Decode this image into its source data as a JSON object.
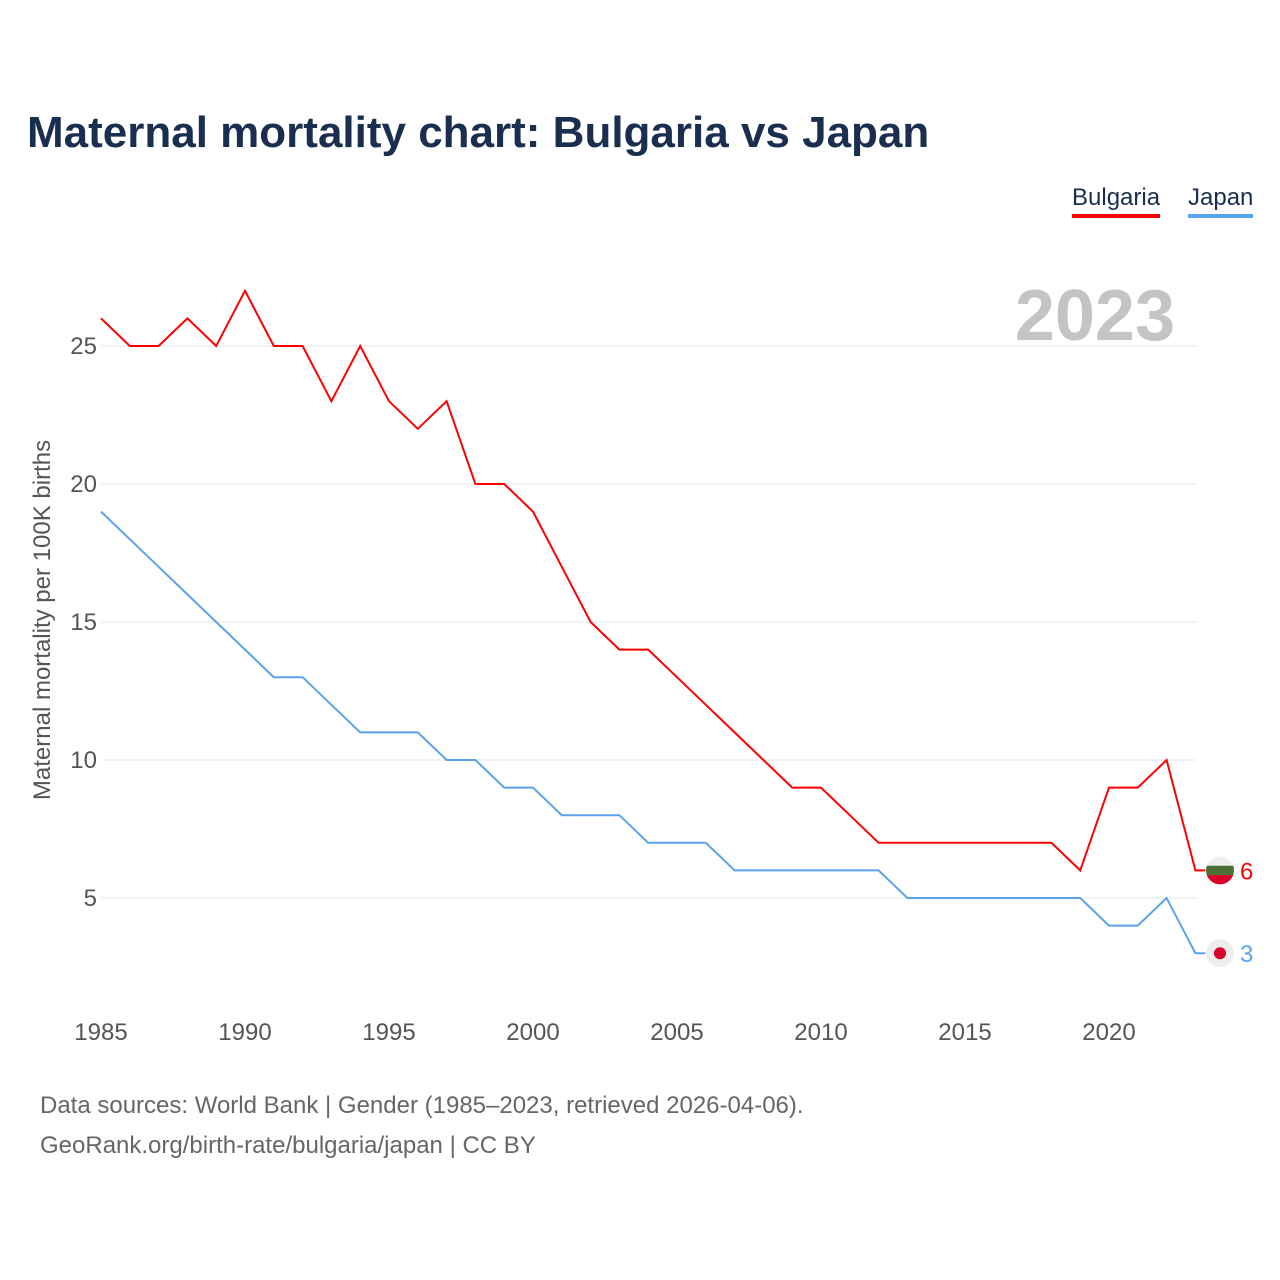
{
  "chart_data": {
    "type": "line",
    "title": "Maternal mortality chart: Bulgaria vs Japan",
    "ylabel": "Maternal mortality per 100K births",
    "xlabel": "",
    "year_label": "2023",
    "x": [
      1985,
      1986,
      1987,
      1988,
      1989,
      1990,
      1991,
      1992,
      1993,
      1994,
      1995,
      1996,
      1997,
      1998,
      1999,
      2000,
      2001,
      2002,
      2003,
      2004,
      2005,
      2006,
      2007,
      2008,
      2009,
      2010,
      2011,
      2012,
      2013,
      2014,
      2015,
      2016,
      2017,
      2018,
      2019,
      2020,
      2021,
      2022,
      2023
    ],
    "series": [
      {
        "name": "Bulgaria",
        "color": "#ff0000",
        "end_label": "6",
        "values": [
          26,
          25,
          25,
          26,
          25,
          27,
          25,
          25,
          23,
          25,
          23,
          22,
          23,
          20,
          20,
          19,
          17,
          15,
          14,
          14,
          13,
          12,
          11,
          10,
          9,
          9,
          8,
          7,
          7,
          7,
          7,
          7,
          7,
          7,
          6,
          9,
          9,
          10,
          6
        ]
      },
      {
        "name": "Japan",
        "color": "#5ba3ec",
        "end_label": "3",
        "values": [
          19,
          18,
          17,
          16,
          15,
          14,
          13,
          13,
          12,
          11,
          11,
          11,
          10,
          10,
          9,
          9,
          8,
          8,
          8,
          7,
          7,
          7,
          6,
          6,
          6,
          6,
          6,
          6,
          5,
          5,
          5,
          5,
          5,
          5,
          5,
          4,
          4,
          5,
          3
        ]
      }
    ],
    "xticks": [
      "1985",
      "1990",
      "1995",
      "2000",
      "2005",
      "2010",
      "2015",
      "2020"
    ],
    "yticks": [
      "5",
      "10",
      "15",
      "20",
      "25"
    ],
    "xlim": [
      1985,
      2023
    ],
    "ylim": [
      0,
      27
    ],
    "grid": true,
    "legend_position": "top-right"
  },
  "footer": {
    "line1": "Data sources: World Bank | Gender (1985–2023, retrieved 2026-04-06).",
    "line2": "GeoRank.org/birth-rate/bulgaria/japan | CC BY"
  }
}
